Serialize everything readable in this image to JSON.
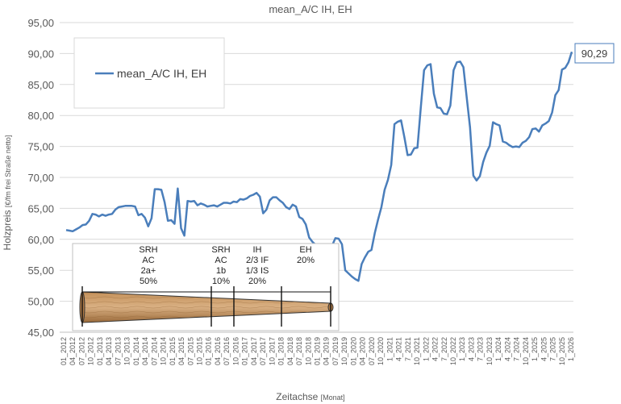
{
  "chart_data": {
    "type": "line",
    "title": "mean_A/C IH, EH",
    "xlabel": "Zeitachse",
    "xlabel_unit": "[Monat]",
    "ylabel": "Holzpreis",
    "ylabel_unit": "[€/fm frei Straße netto]",
    "ylim": [
      45,
      95
    ],
    "yticks": [
      "45,00",
      "50,00",
      "55,00",
      "60,00",
      "65,00",
      "70,00",
      "75,00",
      "80,00",
      "85,00",
      "90,00",
      "95,00"
    ],
    "grid": "horizontal",
    "legend_position": "top-left",
    "series": [
      {
        "name": "mean_A/C IH, EH",
        "color": "#4a7ebb",
        "last_value_label": "90,29",
        "values": [
          61.5,
          61.4,
          61.3,
          61.6,
          61.9,
          62.3,
          62.4,
          63.0,
          64.1,
          64.0,
          63.7,
          64.0,
          63.8,
          64.0,
          64.1,
          64.8,
          65.2,
          65.3,
          65.4,
          65.4,
          65.4,
          65.3,
          63.9,
          64.1,
          63.5,
          62.1,
          63.4,
          68.1,
          68.1,
          68.0,
          66.0,
          63.0,
          63.1,
          62.5,
          68.2,
          61.8,
          60.6,
          66.2,
          66.1,
          66.2,
          65.5,
          65.8,
          65.6,
          65.3,
          65.4,
          65.5,
          65.3,
          65.6,
          65.9,
          65.9,
          65.8,
          66.1,
          66.0,
          66.5,
          66.4,
          66.6,
          67.0,
          67.2,
          67.5,
          66.9,
          64.2,
          64.8,
          66.3,
          66.8,
          66.8,
          66.3,
          65.9,
          65.2,
          64.9,
          65.6,
          65.3,
          63.6,
          63.3,
          62.4,
          60.3,
          59.6,
          59.1,
          58.9,
          58.7,
          58.3,
          58.8,
          59.0,
          60.2,
          60.1,
          59.2,
          55.0,
          54.5,
          54.0,
          53.6,
          53.3,
          56.0,
          57.1,
          58.0,
          58.3,
          61.0,
          63.2,
          65.2,
          68.0,
          69.6,
          72.0,
          78.6,
          79.0,
          79.2,
          76.5,
          73.6,
          73.7,
          74.7,
          74.8,
          81.2,
          87.3,
          88.1,
          88.3,
          83.5,
          81.3,
          81.2,
          80.3,
          80.2,
          81.6,
          87.3,
          88.6,
          88.7,
          87.8,
          82.9,
          78.1,
          70.3,
          69.5,
          70.2,
          72.5,
          74.0,
          75.1,
          78.9,
          78.6,
          78.4,
          75.8,
          75.6,
          75.2,
          74.9,
          75.0,
          74.9,
          75.6,
          75.9,
          76.5,
          77.8,
          77.9,
          77.4,
          78.4,
          78.7,
          79.1,
          80.5,
          83.3,
          84.1,
          87.4,
          87.7,
          88.6,
          90.29
        ]
      }
    ],
    "x_tick_labels": [
      "01_2012",
      "04_2012",
      "07_2012",
      "10_2012",
      "01_2013",
      "04_2013",
      "07_2013",
      "10_2013",
      "01_2014",
      "04_2014",
      "07_2014",
      "10_2014",
      "01_2015",
      "04_2015",
      "07_2015",
      "10_2015",
      "01_2016",
      "04_2016",
      "07_2016",
      "10_2016",
      "01_2017",
      "04_2017",
      "07_2017",
      "10_2017",
      "01_2018",
      "04_2018",
      "07_2018",
      "10_2018",
      "01_2019",
      "04_2019",
      "07_2019",
      "10_2019",
      "01_2020",
      "04_2020",
      "07_2020",
      "10_2020",
      "1_2021",
      "4_2021",
      "7_2021",
      "10_2021",
      "1_2022",
      "4_2022",
      "7_2022",
      "10_2022",
      "1_2023",
      "4_2023",
      "7_2023",
      "10_2023",
      "1_2024",
      "4_2024",
      "7_2024",
      "10_2024",
      "1_2025",
      "4_2025",
      "7_2025",
      "10_2025",
      "1_2026"
    ]
  },
  "inset": {
    "segments": [
      {
        "lines": [
          "SRH",
          "AC",
          "2a+",
          "50%"
        ]
      },
      {
        "lines": [
          "SRH",
          "AC",
          "1b",
          "10%"
        ]
      },
      {
        "lines": [
          "IH",
          "2/3 IF",
          "1/3 IS",
          "20%"
        ]
      },
      {
        "lines": [
          "EH",
          "20%"
        ]
      }
    ],
    "log_colors": {
      "wood_dark": "#9a6a3a",
      "wood_mid": "#c4915a",
      "wood_light": "#d9b083",
      "outline": "#333333"
    }
  }
}
